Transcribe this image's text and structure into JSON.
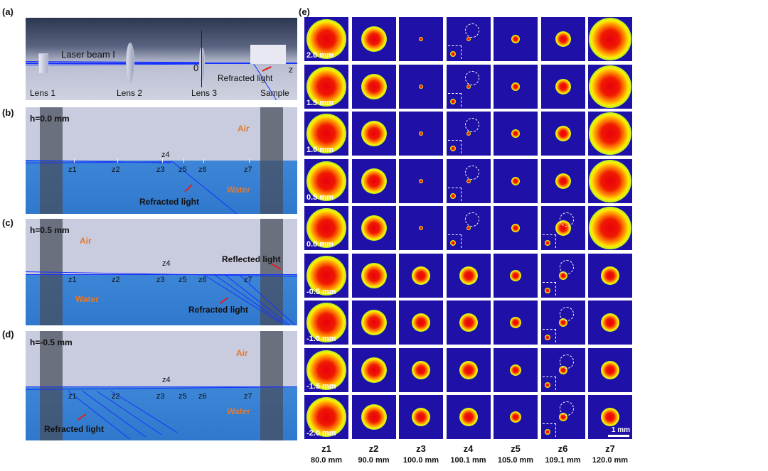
{
  "panel_a": {
    "label": "(a)",
    "beam_label": "Laser beam I",
    "lens_labels": [
      "Lens 1",
      "Lens 2",
      "Lens 3",
      "Sample"
    ],
    "refracted": "Refracted light",
    "axis_origin": "0",
    "axis_x": "z"
  },
  "panel_b": {
    "label": "(b)",
    "height": "h=0.0 mm",
    "air": "Air",
    "water": "Water",
    "z_labels": [
      "z1",
      "z2",
      "z3",
      "z4",
      "z5",
      "z6",
      "z7"
    ],
    "refracted": "Refracted light"
  },
  "panel_c": {
    "label": "(c)",
    "height": "h=0.5 mm",
    "air": "Air",
    "water": "Water",
    "z_labels": [
      "z1",
      "z2",
      "z3",
      "z4",
      "z5",
      "z6",
      "z7"
    ],
    "reflected": "Reflected light",
    "refracted": "Refracted light"
  },
  "panel_d": {
    "label": "(d)",
    "height": "h=-0.5 mm",
    "air": "Air",
    "water": "Water",
    "z_labels": [
      "z1",
      "z2",
      "z3",
      "z4",
      "z5",
      "z6",
      "z7"
    ],
    "refracted": "Refracted light"
  },
  "panel_e": {
    "label": "(e)",
    "rows": [
      "2.0 mm",
      "1.5 mm",
      "1.0 mm",
      "0.5 mm",
      "0.0 mm",
      "-0.5 mm",
      "-1.0 mm",
      "-1.5 mm",
      "-2.0 mm"
    ],
    "columns": [
      {
        "name": "z1",
        "position": "80.0 mm"
      },
      {
        "name": "z2",
        "position": "90.0 mm"
      },
      {
        "name": "z3",
        "position": "100.0 mm"
      },
      {
        "name": "z4",
        "position": "100.1 mm"
      },
      {
        "name": "z5",
        "position": "105.0 mm"
      },
      {
        "name": "z6",
        "position": "109.1 mm"
      },
      {
        "name": "z7",
        "position": "120.0 mm"
      }
    ],
    "scale_bar": "1 mm"
  }
}
